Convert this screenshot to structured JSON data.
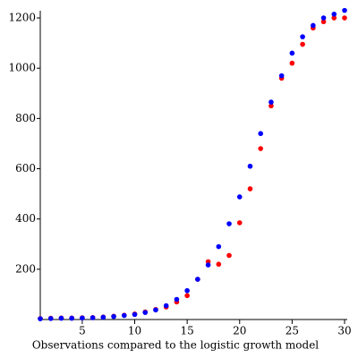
{
  "chart_data": {
    "type": "scatter",
    "x_label": "Observations compared to the logistic growth model",
    "x": [
      1,
      2,
      3,
      4,
      5,
      6,
      7,
      8,
      9,
      10,
      11,
      12,
      13,
      14,
      15,
      16,
      17,
      18,
      19,
      20,
      21,
      22,
      23,
      24,
      25,
      26,
      27,
      28,
      29,
      30
    ],
    "series": [
      {
        "color": "#ff0000",
        "values": [
          4,
          5,
          6,
          6,
          7,
          8,
          10,
          13,
          17,
          22,
          30,
          40,
          50,
          70,
          95,
          160,
          230,
          220,
          255,
          385,
          520,
          680,
          850,
          960,
          1020,
          1095,
          1160,
          1185,
          1200,
          1200
        ]
      },
      {
        "color": "#0000ff",
        "values": [
          3,
          4,
          5,
          5,
          6,
          7,
          9,
          12,
          16,
          20,
          28,
          38,
          55,
          80,
          115,
          160,
          217,
          290,
          381,
          488,
          610,
          740,
          865,
          970,
          1060,
          1125,
          1170,
          1200,
          1215,
          1230
        ]
      }
    ],
    "xlim": [
      1,
      30
    ],
    "xticks": [
      5,
      10,
      15,
      20,
      25,
      30
    ],
    "ylim": [
      0,
      1250
    ],
    "yticks": [
      200,
      400,
      600,
      800,
      1000,
      1200
    ],
    "grid": false
  }
}
